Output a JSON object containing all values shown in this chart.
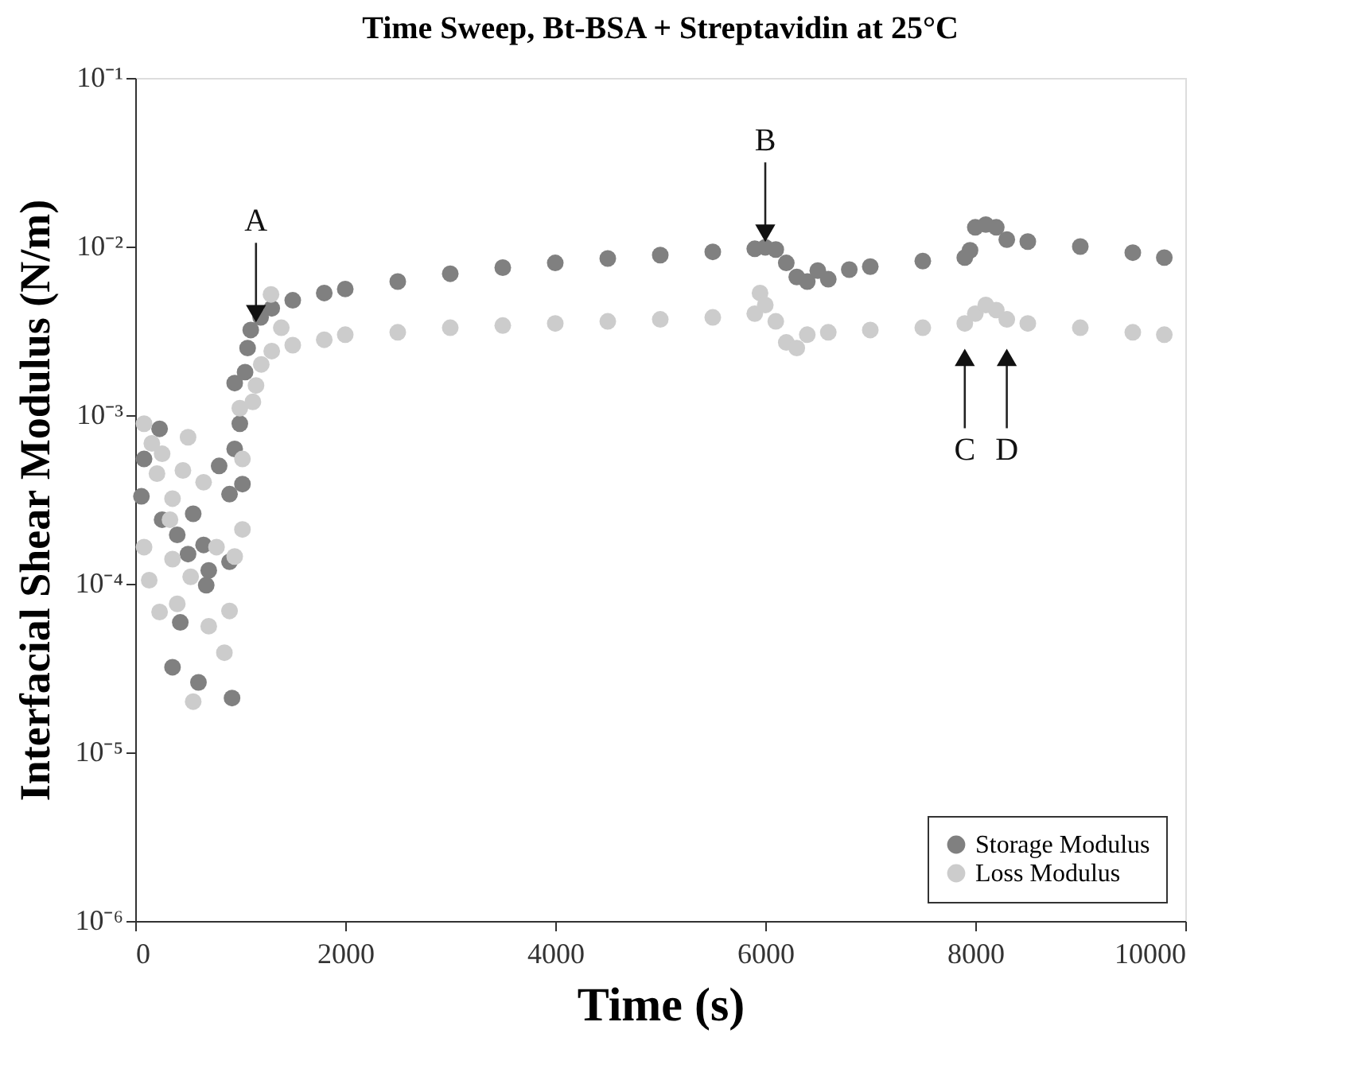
{
  "chart_data": {
    "type": "scatter",
    "title": "Time Sweep, Bt-BSA + Streptavidin at 25°C",
    "xlabel": "Time (s)",
    "ylabel": "Interfacial Shear Modulus (N/m)",
    "log": "y",
    "xlim": [
      0,
      10000
    ],
    "xticks": [
      0,
      2000,
      4000,
      6000,
      8000,
      10000
    ],
    "ylim": [
      1e-06,
      0.1
    ],
    "yticks": [
      {
        "value": 1e-06,
        "label": "10⁻⁶"
      },
      {
        "value": 1e-05,
        "label": "10⁻⁵"
      },
      {
        "value": 0.0001,
        "label": "10⁻⁴"
      },
      {
        "value": 0.001,
        "label": "10⁻³"
      },
      {
        "value": 0.01,
        "label": "10⁻²"
      },
      {
        "value": 0.1,
        "label": "10⁻¹"
      }
    ],
    "grid": false,
    "legend": "bottom right",
    "marker": "circle",
    "series": [
      {
        "name": "Storage Modulus",
        "color": "#808080",
        "x": [
          232,
          84,
          59,
          256,
          400,
          552,
          651,
          503,
          700,
          676,
          429,
          355,
          602,
          922,
          799,
          947,
          1021,
          898,
          947,
          996,
          1046,
          898,
          1070,
          1100,
          1194,
          1300,
          1500,
          1800,
          2000,
          2500,
          3000,
          3500,
          4000,
          4500,
          5000,
          5500,
          5900,
          6000,
          6100,
          6200,
          6300,
          6400,
          6500,
          6600,
          6800,
          7000,
          7500,
          7900,
          7950,
          8000,
          8100,
          8200,
          8300,
          8500,
          9000,
          9500,
          9800
        ],
        "values": [
          0.00083,
          0.00055,
          0.00033,
          0.00024,
          0.000195,
          0.00026,
          0.00017,
          0.00015,
          0.00012,
          9.8e-05,
          5.9e-05,
          3.2e-05,
          2.6e-05,
          2.1e-05,
          0.0005,
          0.00063,
          0.00039,
          0.00034,
          0.00155,
          0.00089,
          0.0018,
          0.000135,
          0.0025,
          0.0032,
          0.0038,
          0.0043,
          0.0048,
          0.0053,
          0.0056,
          0.0062,
          0.0069,
          0.0075,
          0.008,
          0.0085,
          0.0089,
          0.0093,
          0.0097,
          0.0099,
          0.0096,
          0.008,
          0.0066,
          0.0062,
          0.0072,
          0.0064,
          0.0073,
          0.0076,
          0.0082,
          0.0086,
          0.0095,
          0.013,
          0.0135,
          0.013,
          0.011,
          0.0107,
          0.01,
          0.0092,
          0.0086
        ]
      },
      {
        "name": "Loss Modulus",
        "color": "#cccccc",
        "x": [
          84,
          158,
          256,
          207,
          503,
          454,
          355,
          331,
          651,
          84,
          133,
          355,
          528,
          774,
          947,
          1021,
          232,
          400,
          700,
          898,
          849,
          552,
          1021,
          996,
          1120,
          1293,
          1391,
          1150,
          1200,
          1300,
          1500,
          1800,
          2000,
          2500,
          3000,
          3500,
          4000,
          4500,
          5000,
          5500,
          5900,
          5950,
          6000,
          6100,
          6200,
          6300,
          6400,
          6600,
          7000,
          7500,
          7900,
          8000,
          8100,
          8200,
          8300,
          8500,
          9000,
          9500,
          9800
        ],
        "values": [
          0.00089,
          0.00068,
          0.00059,
          0.00045,
          0.00074,
          0.00047,
          0.00032,
          0.00024,
          0.0004,
          0.000165,
          0.000105,
          0.00014,
          0.00011,
          0.000165,
          0.000145,
          0.00021,
          6.8e-05,
          7.6e-05,
          5.6e-05,
          6.9e-05,
          3.9e-05,
          2e-05,
          0.00055,
          0.0011,
          0.0012,
          0.0052,
          0.0033,
          0.0015,
          0.002,
          0.0024,
          0.0026,
          0.0028,
          0.003,
          0.0031,
          0.0033,
          0.0034,
          0.0035,
          0.0036,
          0.0037,
          0.0038,
          0.004,
          0.0053,
          0.0045,
          0.0036,
          0.0027,
          0.0025,
          0.003,
          0.0031,
          0.0032,
          0.0033,
          0.0035,
          0.004,
          0.0045,
          0.0042,
          0.0037,
          0.0035,
          0.0033,
          0.0031,
          0.003
        ]
      }
    ],
    "annotations": [
      {
        "text": "A",
        "x": 1150,
        "y": 0.004
      },
      {
        "text": "B",
        "x": 6000,
        "y": 0.012
      },
      {
        "text": "C",
        "x": 7900,
        "y": 0.0022
      },
      {
        "text": "D",
        "x": 8300,
        "y": 0.0022
      }
    ]
  }
}
